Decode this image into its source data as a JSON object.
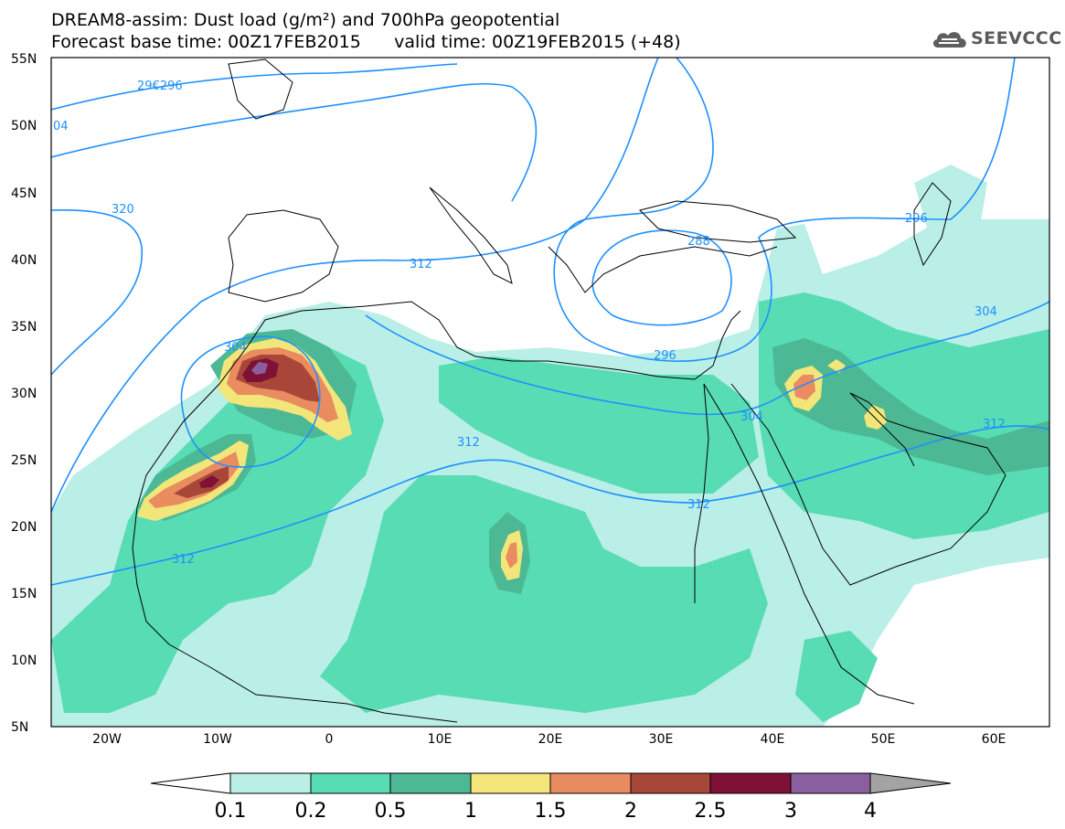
{
  "header": {
    "title_line1": "DREAM8-assim: Dust load (g/m²) and 700hPa geopotential",
    "base_time_label": "Forecast base time: 00Z17FEB2015",
    "valid_time_label": "valid time: 00Z19FEB2015 (+48)"
  },
  "logo": {
    "text": "SEEVCCC",
    "icon": "cloud-logo-icon"
  },
  "map": {
    "lat_ticks": [
      "55N",
      "50N",
      "45N",
      "40N",
      "35N",
      "30N",
      "25N",
      "20N",
      "15N",
      "10N",
      "5N"
    ],
    "lon_ticks": [
      "20W",
      "10W",
      "0",
      "10E",
      "20E",
      "30E",
      "40E",
      "50E",
      "60E"
    ],
    "contour_labels": [
      "29€296",
      "04",
      "320",
      "312",
      "288",
      "296",
      "304",
      "304",
      "304",
      "312",
      "312",
      "312",
      "296",
      "312"
    ],
    "colors": {
      "contour": "#1e90ff",
      "land_background": "#ffffff"
    }
  },
  "colorbar": {
    "labels": [
      "0.1",
      "0.2",
      "0.5",
      "1",
      "1.5",
      "2",
      "2.5",
      "3",
      "4"
    ],
    "colors": [
      "#ffffff",
      "#b9efe6",
      "#57dcb3",
      "#4db894",
      "#f2e67a",
      "#e98c5f",
      "#a84739",
      "#7e1135",
      "#8a5f9f",
      "#a3a3a3"
    ]
  }
}
